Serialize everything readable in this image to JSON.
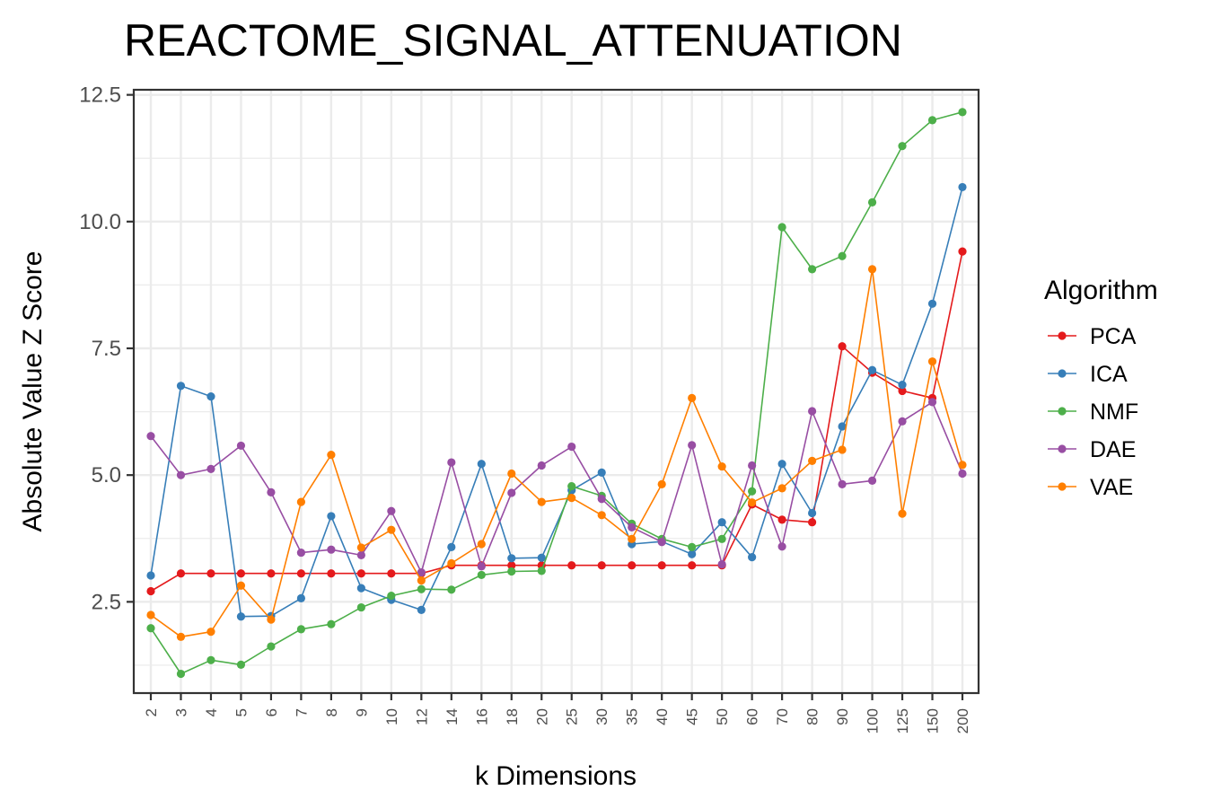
{
  "chart_data": {
    "type": "line",
    "title": "REACTOME_SIGNAL_ATTENUATION",
    "xlabel": "k Dimensions",
    "ylabel": "Absolute Value Z Score",
    "categories": [
      "2",
      "3",
      "4",
      "5",
      "6",
      "7",
      "8",
      "9",
      "10",
      "12",
      "14",
      "16",
      "18",
      "20",
      "25",
      "30",
      "35",
      "40",
      "45",
      "50",
      "60",
      "70",
      "80",
      "90",
      "100",
      "125",
      "150",
      "200"
    ],
    "ylim": [
      0.7,
      12.6
    ],
    "yticks": [
      2.5,
      5.0,
      7.5,
      10.0,
      12.5
    ],
    "ytick_labels": [
      "2.5",
      "5.0",
      "7.5",
      "10.0",
      "12.5"
    ],
    "grid": true,
    "legend": {
      "title": "Algorithm",
      "position": "right"
    },
    "series": [
      {
        "name": "PCA",
        "color": "#e41a1c",
        "values": [
          2.71,
          3.06,
          3.06,
          3.06,
          3.06,
          3.06,
          3.06,
          3.06,
          3.06,
          3.06,
          3.22,
          3.22,
          3.22,
          3.22,
          3.22,
          3.22,
          3.22,
          3.22,
          3.22,
          3.22,
          4.42,
          4.12,
          4.07,
          7.54,
          7.02,
          6.66,
          6.52,
          9.41
        ]
      },
      {
        "name": "ICA",
        "color": "#377eb8",
        "values": [
          3.02,
          6.76,
          6.55,
          2.21,
          2.22,
          2.57,
          4.19,
          2.77,
          2.54,
          2.34,
          3.58,
          5.22,
          3.36,
          3.37,
          4.7,
          5.05,
          3.64,
          3.69,
          3.44,
          4.07,
          3.38,
          5.22,
          4.25,
          5.96,
          7.07,
          6.78,
          8.38,
          10.68
        ]
      },
      {
        "name": "NMF",
        "color": "#4daf4a",
        "values": [
          1.98,
          1.08,
          1.35,
          1.26,
          1.62,
          1.96,
          2.06,
          2.39,
          2.62,
          2.75,
          2.74,
          3.03,
          3.1,
          3.11,
          4.78,
          4.59,
          4.04,
          3.74,
          3.58,
          3.74,
          4.68,
          9.89,
          9.06,
          9.32,
          10.38,
          11.49,
          12.0,
          12.16
        ]
      },
      {
        "name": "DAE",
        "color": "#984ea3",
        "values": [
          5.77,
          5.0,
          5.12,
          5.58,
          4.66,
          3.47,
          3.53,
          3.42,
          4.29,
          3.08,
          5.25,
          3.2,
          4.65,
          5.19,
          5.56,
          4.53,
          3.97,
          3.68,
          5.59,
          3.24,
          5.19,
          3.59,
          6.26,
          4.82,
          4.89,
          6.06,
          6.44,
          5.03
        ]
      },
      {
        "name": "VAE",
        "color": "#ff7f00",
        "values": [
          2.24,
          1.81,
          1.91,
          2.82,
          2.15,
          4.47,
          5.4,
          3.57,
          3.92,
          2.92,
          3.26,
          3.64,
          5.03,
          4.47,
          4.55,
          4.21,
          3.74,
          4.82,
          6.52,
          5.17,
          4.46,
          4.74,
          5.28,
          5.5,
          9.06,
          4.24,
          7.24,
          5.2
        ]
      }
    ]
  }
}
